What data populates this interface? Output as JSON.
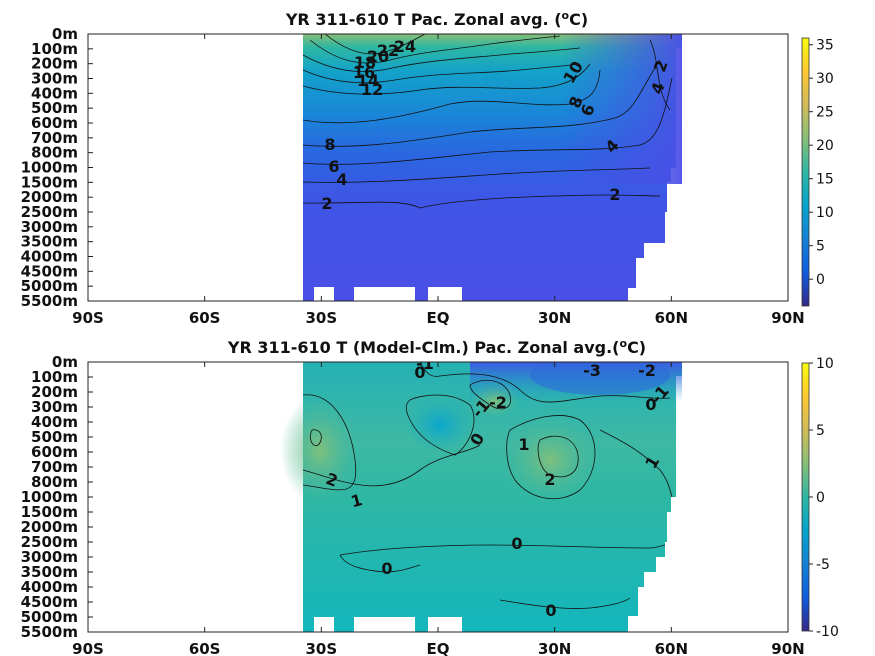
{
  "chart_data": [
    {
      "type": "heatmap",
      "title": "YR 311-610 T Pac. Zonal avg. (",
      "title_sup": "o",
      "title_end": "C)",
      "x_ticks": [
        "90S",
        "60S",
        "30S",
        "EQ",
        "30N",
        "60N",
        "90N"
      ],
      "x_values": [
        -90,
        -60,
        -30,
        0,
        30,
        60,
        90
      ],
      "y_ticks": [
        "0m",
        "100m",
        "200m",
        "300m",
        "400m",
        "500m",
        "600m",
        "700m",
        "800m",
        "1000m",
        "1500m",
        "2000m",
        "2500m",
        "3000m",
        "3500m",
        "4000m",
        "4500m",
        "5000m",
        "5500m"
      ],
      "colorbar": {
        "min": -4,
        "max": 36,
        "ticks": [
          "0",
          "5",
          "10",
          "15",
          "20",
          "25",
          "30",
          "35"
        ],
        "tick_values": [
          0,
          5,
          10,
          15,
          20,
          25,
          30,
          35
        ]
      },
      "data_lat_range": [
        -35,
        63
      ],
      "contour_labels": [
        "24",
        "22",
        "20",
        "18",
        "16",
        "14",
        "12",
        "10",
        "8",
        "6",
        "4",
        "2",
        "8",
        "6",
        "4",
        "2",
        "2",
        "4",
        "6",
        "4",
        "2"
      ]
    },
    {
      "type": "heatmap",
      "title": "YR 311-610 T (Model-Clm.) Pac. Zonal avg.(",
      "title_sup": "o",
      "title_end": "C)",
      "x_ticks": [
        "90S",
        "60S",
        "30S",
        "EQ",
        "30N",
        "60N",
        "90N"
      ],
      "x_values": [
        -90,
        -60,
        -30,
        0,
        30,
        60,
        90
      ],
      "y_ticks": [
        "0m",
        "100m",
        "200m",
        "300m",
        "400m",
        "500m",
        "600m",
        "700m",
        "800m",
        "1000m",
        "1500m",
        "2000m",
        "2500m",
        "3000m",
        "3500m",
        "4000m",
        "4500m",
        "5000m",
        "5500m"
      ],
      "colorbar": {
        "min": -10,
        "max": 10,
        "ticks": [
          "-10",
          "-5",
          "0",
          "5",
          "10"
        ],
        "tick_values": [
          -10,
          -5,
          0,
          5,
          10
        ]
      },
      "data_lat_range": [
        -35,
        63
      ],
      "contour_labels": [
        "-1",
        "0",
        "-2",
        "-1",
        "0",
        "1",
        "2",
        "1",
        "2",
        "-3",
        "-2",
        "-1",
        "0",
        "1",
        "0",
        "0",
        "0"
      ]
    }
  ],
  "colors": {
    "parula_stops": [
      "#352a87",
      "#0f5cdd",
      "#1481d6",
      "#06a4ca",
      "#2eb7a4",
      "#87bf77",
      "#d1bb59",
      "#fec832",
      "#f9fb0e"
    ],
    "mask": "#ffffff"
  }
}
